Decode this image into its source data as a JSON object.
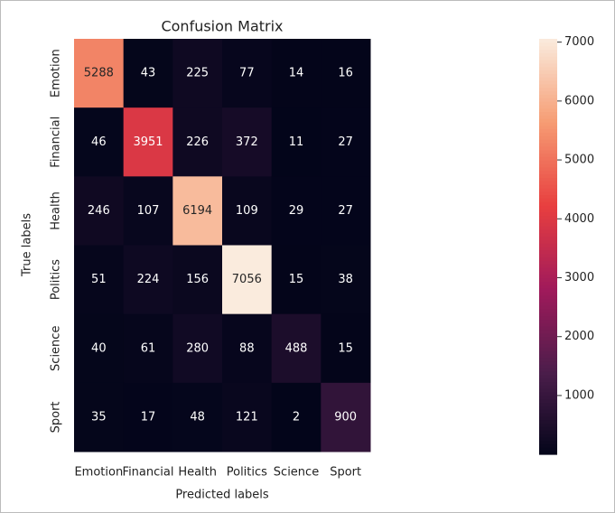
{
  "chart_data": {
    "type": "heatmap",
    "title": "Confusion Matrix",
    "xlabel": "Predicted labels",
    "ylabel": "True labels",
    "x_categories": [
      "Emotion",
      "Financial",
      "Health",
      "Politics",
      "Science",
      "Sport"
    ],
    "y_categories": [
      "Emotion",
      "Financial",
      "Health",
      "Politics",
      "Science",
      "Sport"
    ],
    "values": [
      [
        5288,
        43,
        225,
        77,
        14,
        16
      ],
      [
        46,
        3951,
        226,
        372,
        11,
        27
      ],
      [
        246,
        107,
        6194,
        109,
        29,
        27
      ],
      [
        51,
        224,
        156,
        7056,
        15,
        38
      ],
      [
        40,
        61,
        280,
        88,
        488,
        15
      ],
      [
        35,
        17,
        48,
        121,
        2,
        900
      ]
    ],
    "colorscale": [
      "#03051a",
      "#4c1d4b",
      "#a11a5b",
      "#e83f3f",
      "#f69c73",
      "#faebdd"
    ],
    "clim": [
      2,
      7056
    ],
    "cticks": [
      1000,
      2000,
      3000,
      4000,
      5000,
      6000,
      7000
    ]
  }
}
